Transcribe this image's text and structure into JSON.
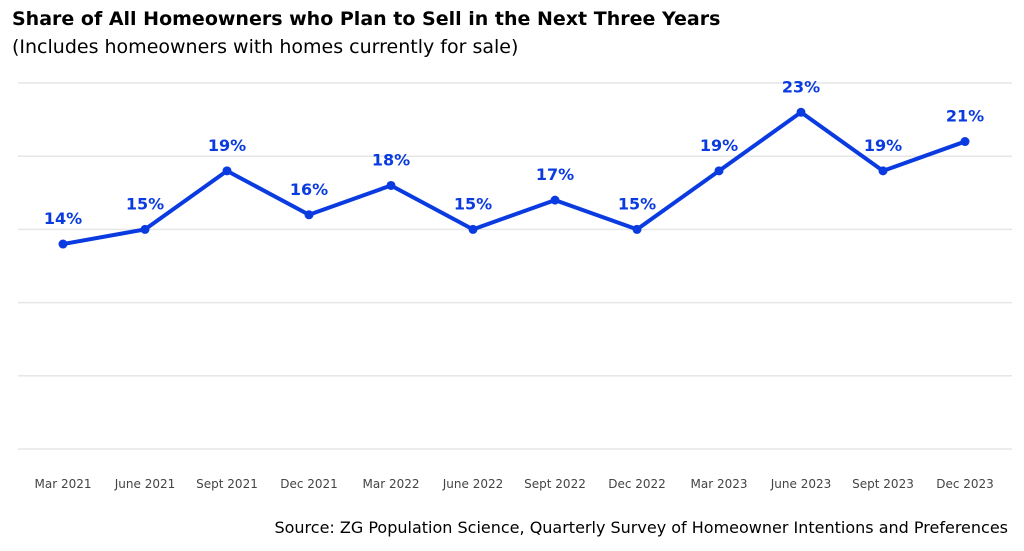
{
  "title": "Share of All Homeowners who Plan to Sell in the Next Three Years",
  "subtitle": "(Includes homeowners with homes currently for sale)",
  "source": "Source: ZG Population Science, Quarterly Survey of Homeowner Intentions and Preferences",
  "colors": {
    "line": "#0a3be0",
    "label": "#0a3be0",
    "grid": "#e6e6e6",
    "tick": "#444444"
  },
  "chart_data": {
    "type": "line",
    "categories": [
      "Mar 2021",
      "June 2021",
      "Sept 2021",
      "Dec 2021",
      "Mar 2022",
      "June 2022",
      "Sept 2022",
      "Dec 2022",
      "Mar 2023",
      "June 2023",
      "Sept 2023",
      "Dec 2023"
    ],
    "values": [
      14,
      15,
      19,
      16,
      18,
      15,
      17,
      15,
      19,
      23,
      19,
      21
    ],
    "data_labels": [
      "14%",
      "15%",
      "19%",
      "16%",
      "18%",
      "15%",
      "17%",
      "15%",
      "19%",
      "23%",
      "19%",
      "21%"
    ],
    "ylim": [
      0,
      25
    ],
    "y_gridlines": [
      0,
      5,
      10,
      15,
      20,
      25
    ],
    "grid": true,
    "legend": "none",
    "title": "Share of All Homeowners who Plan to Sell in the Next Three Years",
    "subtitle": "(Includes homeowners with homes currently for sale)",
    "xlabel": "",
    "ylabel": ""
  }
}
